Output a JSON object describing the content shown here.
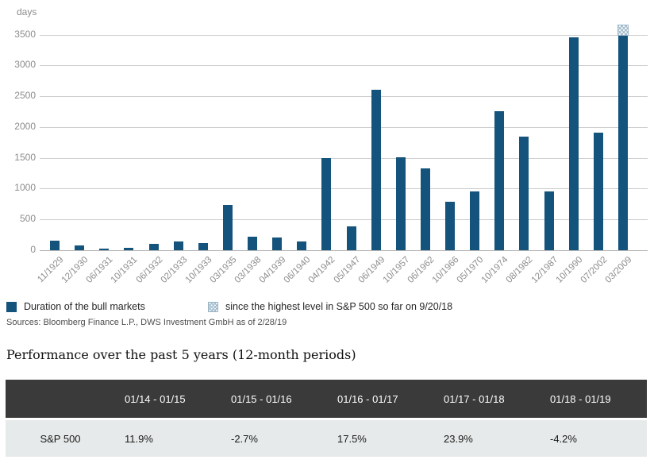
{
  "chart_data": {
    "type": "bar",
    "ylabel": "days",
    "x": [
      "11/1929",
      "12/1930",
      "06/1931",
      "10/1931",
      "06/1932",
      "02/1933",
      "10/1933",
      "03/1935",
      "03/1938",
      "04/1939",
      "06/1940",
      "04/1942",
      "05/1947",
      "06/1949",
      "10/1957",
      "06/1962",
      "10/1966",
      "05/1970",
      "10/1974",
      "08/1982",
      "12/1987",
      "10/1990",
      "07/2002",
      "03/2009"
    ],
    "series": [
      {
        "name": "Duration of the bull markets",
        "style": "solid",
        "values": [
          150,
          75,
          25,
          40,
          105,
          140,
          115,
          730,
          220,
          200,
          140,
          1490,
          390,
          2610,
          1510,
          1330,
          780,
          960,
          2250,
          1840,
          950,
          3450,
          1910,
          3480
        ]
      },
      {
        "name": "since the highest level in S&P 500 so far on 9/20/18",
        "style": "hatched",
        "values": [
          0,
          0,
          0,
          0,
          0,
          0,
          0,
          0,
          0,
          0,
          0,
          0,
          0,
          0,
          0,
          0,
          0,
          0,
          0,
          0,
          0,
          0,
          0,
          160
        ]
      }
    ],
    "ylim": [
      0,
      3500
    ],
    "yticks": [
      0,
      500,
      1000,
      1500,
      2000,
      2500,
      3000,
      3500
    ],
    "grid": true,
    "legend_position": "bottom",
    "bar_color": "#14537b",
    "hatch_color": "#9cb6c8"
  },
  "sources": "Sources: Bloomberg Finance L.P., DWS Investment GmbH as of 2/28/19",
  "performance": {
    "title": "Performance over the past 5 years (12-month periods)",
    "table": {
      "columns": [
        "",
        "01/14 - 01/15",
        "01/15 - 01/16",
        "01/16 - 01/17",
        "01/17 - 01/18",
        "01/18 - 01/19"
      ],
      "rows": [
        {
          "label": "S&P 500",
          "values": [
            "11.9%",
            "-2.7%",
            "17.5%",
            "23.9%",
            "-4.2%"
          ]
        }
      ]
    }
  }
}
